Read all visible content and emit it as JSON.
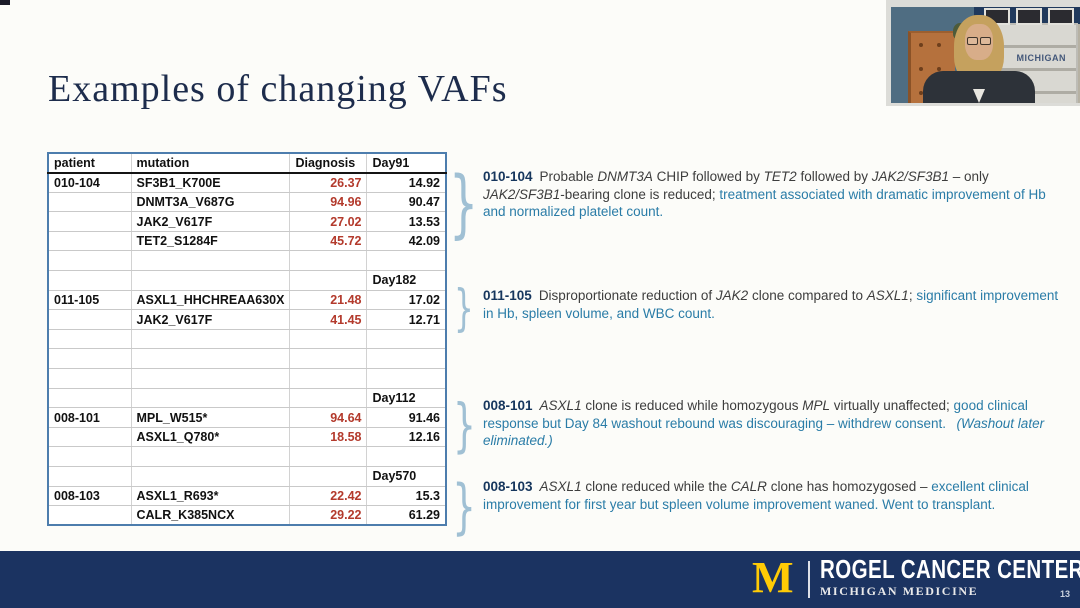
{
  "slide": {
    "title": "Examples of changing VAFs"
  },
  "table": {
    "headers": [
      "patient",
      "mutation",
      "Diagnosis",
      "Day91"
    ],
    "rows": [
      [
        "010-104",
        "SF3B1_K700E",
        "26.37",
        "14.92"
      ],
      [
        "",
        "DNMT3A_V687G",
        "94.96",
        "90.47"
      ],
      [
        "",
        "JAK2_V617F",
        "27.02",
        "13.53"
      ],
      [
        "",
        "TET2_S1284F",
        "45.72",
        "42.09"
      ],
      [
        "",
        "",
        "",
        ""
      ],
      [
        "",
        "",
        "",
        "Day182"
      ],
      [
        "011-105",
        "ASXL1_HHCHREAA630X",
        "21.48",
        "17.02"
      ],
      [
        "",
        "JAK2_V617F",
        "41.45",
        "12.71"
      ],
      [
        "",
        "",
        "",
        ""
      ],
      [
        "",
        "",
        "",
        ""
      ],
      [
        "",
        "",
        "",
        ""
      ],
      [
        "",
        "",
        "",
        "Day112"
      ],
      [
        "008-101",
        "MPL_W515*",
        "94.64",
        "91.46"
      ],
      [
        "",
        "ASXL1_Q780*",
        "18.58",
        "12.16"
      ],
      [
        "",
        "",
        "",
        ""
      ],
      [
        "",
        "",
        "",
        "Day570"
      ],
      [
        "008-103",
        "ASXL1_R693*",
        "22.42",
        "15.3"
      ],
      [
        "",
        "CALR_K385NCX",
        "29.22",
        "61.29"
      ]
    ]
  },
  "annotations": [
    {
      "segments": [
        {
          "s": "id",
          "t": "010-104"
        },
        {
          "s": "b",
          "t": "Probable "
        },
        {
          "s": "bi",
          "t": "DNMT3A"
        },
        {
          "s": "b",
          "t": " CHIP followed by "
        },
        {
          "s": "bi",
          "t": "TET2"
        },
        {
          "s": "b",
          "t": " followed by "
        },
        {
          "s": "bi",
          "t": "JAK2/SF3B1"
        },
        {
          "s": "b",
          "t": " – only "
        },
        {
          "s": "bi",
          "t": "JAK2/SF3B1"
        },
        {
          "s": "b",
          "t": "-bearing clone is reduced; "
        },
        {
          "s": "t",
          "t": "treatment associated with dramatic improvement of Hb and normalized platelet count."
        }
      ]
    },
    {
      "segments": [
        {
          "s": "id",
          "t": "011-105"
        },
        {
          "s": "b",
          "t": "Disproportionate reduction of "
        },
        {
          "s": "bi",
          "t": "JAK2"
        },
        {
          "s": "b",
          "t": " clone compared to "
        },
        {
          "s": "bi",
          "t": "ASXL1"
        },
        {
          "s": "b",
          "t": "; "
        },
        {
          "s": "t",
          "t": "significant improvement in Hb, spleen volume, and WBC count."
        }
      ]
    },
    {
      "segments": [
        {
          "s": "id",
          "t": "008-101"
        },
        {
          "s": "bi",
          "t": "ASXL1"
        },
        {
          "s": "b",
          "t": " clone is reduced while homozygous "
        },
        {
          "s": "bi",
          "t": "MPL"
        },
        {
          "s": "b",
          "t": " virtually unaffected; "
        },
        {
          "s": "t",
          "t": "good clinical response but Day 84 washout rebound was discouraging – withdrew consent.  "
        },
        {
          "s": "ti",
          "t": "(Washout later eliminated.)"
        }
      ]
    },
    {
      "segments": [
        {
          "s": "id",
          "t": "008-103"
        },
        {
          "s": "bi",
          "t": "ASXL1"
        },
        {
          "s": "b",
          "t": " clone reduced while the "
        },
        {
          "s": "bi",
          "t": "CALR"
        },
        {
          "s": "b",
          "t": " clone has homozygosed – "
        },
        {
          "s": "t",
          "t": "excellent clinical improvement for first year but spleen volume improvement waned. Went to transplant."
        }
      ]
    }
  ],
  "braces": {
    "glyph": "}"
  },
  "webcam": {
    "sign": "MICHIGAN"
  },
  "footer": {
    "logo_letter": "M",
    "org": "ROGEL CANCER CENTER",
    "sub": "MICHIGAN MEDICINE",
    "page": "13"
  },
  "colors": {
    "diagnosis_red": "#b33a2c",
    "annotation_teal": "#2a7ca7",
    "patient_id_navy": "#16365d",
    "table_border_blue": "#4d7dad",
    "footer_navy": "#1b3361",
    "maize": "#ffcb05"
  }
}
